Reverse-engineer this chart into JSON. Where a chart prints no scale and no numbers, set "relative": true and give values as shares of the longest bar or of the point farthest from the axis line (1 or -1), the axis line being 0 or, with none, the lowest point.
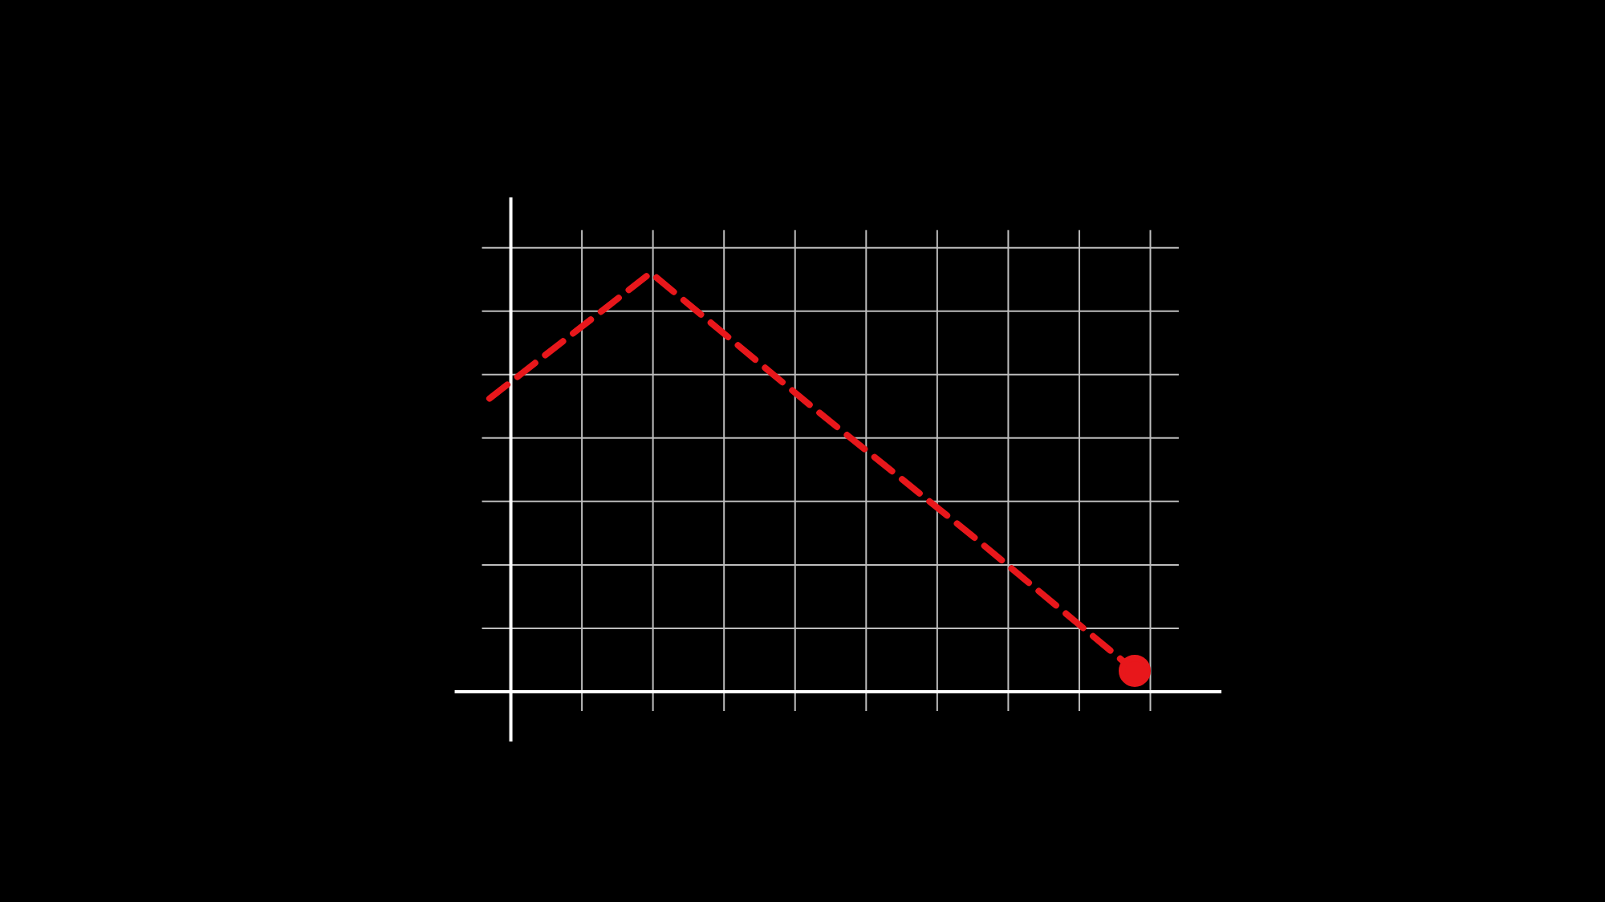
{
  "chart_data": {
    "type": "line",
    "relative": true,
    "categories": [
      null,
      null,
      null,
      null,
      null
    ],
    "grid": true,
    "legend": false,
    "series": [
      {
        "color": "#e8171b",
        "values": [
          0.7,
          1,
          0.68,
          0.37,
          0.05
        ],
        "line_style": "dashed"
      }
    ]
  }
}
